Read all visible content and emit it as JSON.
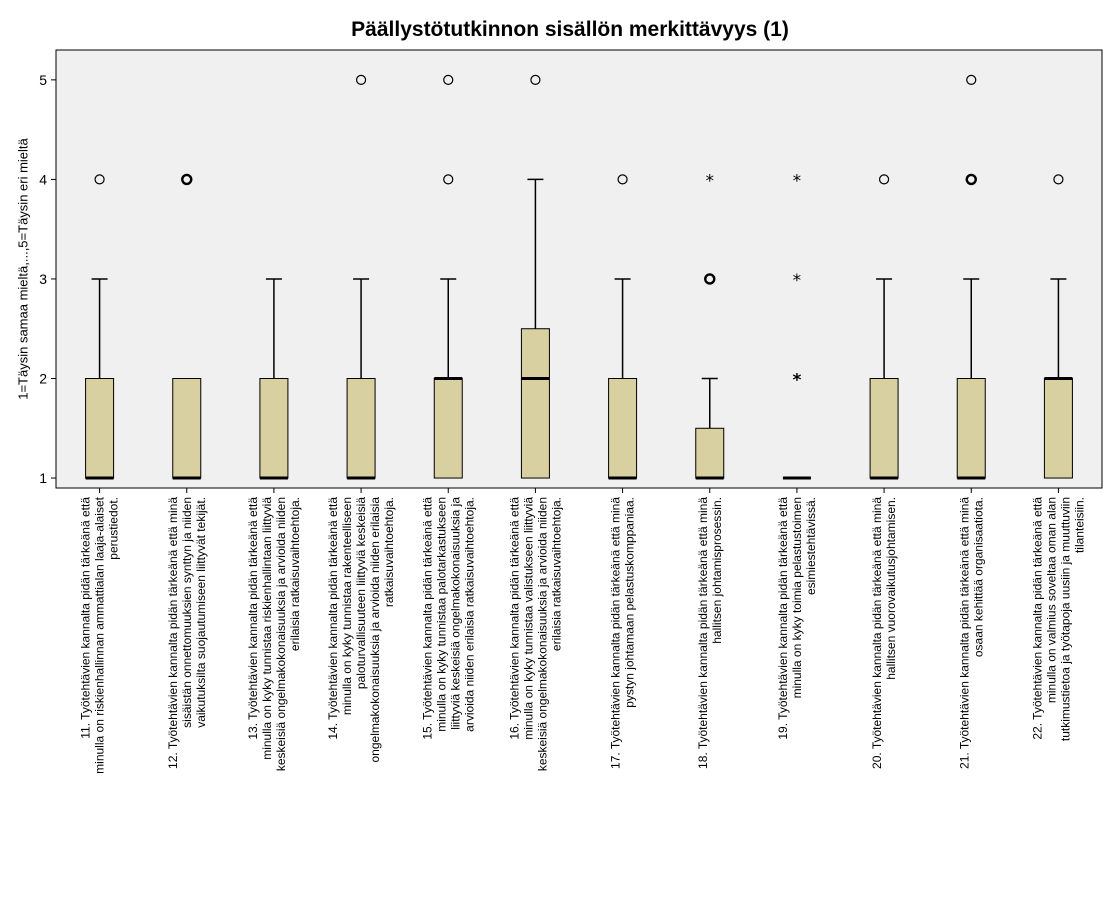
{
  "chart_data": {
    "type": "boxplot",
    "title": "Päällystötutkinnon sisällön merkittävyys (1)",
    "ylabel": "1=Täysin samaa mieltä,...,5=Täysin eri mieltä",
    "ylim": [
      0.9,
      5.3
    ],
    "yticks": [
      1,
      2,
      3,
      4,
      5
    ],
    "grid": false,
    "colors": {
      "box_fill": "#d8d0a0",
      "plot_bg": "#f0f0f0",
      "stroke": "#000000"
    },
    "categories": [
      {
        "lines": [
          "11. Työtehtävien kannalta pidän tärkeänä että",
          "minulla on riskienhallinnan ammattialan laaja-alaiset",
          "perustiedot."
        ]
      },
      {
        "lines": [
          "12. Työtehtävien kannalta pidän tärkeänä että minä",
          "sisäistän onnettomuuksien synttyn ja niiden",
          "vaikutuksilta suojautumiseen liittyvät tekijät."
        ]
      },
      {
        "lines": [
          "13. Työtehtävien kannalta pidän tärkeänä että",
          "minulla on kyky tunnistaa riskienhallintaan liittyviä",
          "keskeisiä ongelmakokonaisuuksia ja arvioida niiden",
          "erilaisia ratkaisuvaihtoehtoja."
        ]
      },
      {
        "lines": [
          "14. Työtehtävien kannalta pidän tärkeänä että",
          "minulla on kyky tunnistaa rakenteelliseen",
          "paloturvallisuuteen liittyviä keskeisiä",
          "ongelmakokonaisuuksia ja arvioida niiden erilaisia",
          "ratkaisuvaihtoehtoja."
        ]
      },
      {
        "lines": [
          "15. Työtehtävien kannalta pidän tärkeänä että",
          "minulla on kyky tunnistaa palotarkastukseen",
          "liittyviä keskeisiä ongelmakokonaisuuksia ja",
          "arvioida niiden erilaisia ratkaisuvaihtoehtoja."
        ]
      },
      {
        "lines": [
          "16. Työtehtävien kannalta pidän tärkeänä että",
          "minulla on kyky tunnistaa valistukseen liittyviä",
          "keskeisiä ongelmakokonaisuuksia ja arvioida niiden",
          "erilaisia ratkaisuvaihtoehtoja."
        ]
      },
      {
        "lines": [
          "17. Työtehtävien kannalta pidän tärkeänä että minä",
          "pystyn johtamaan pelastuskomppaniaa."
        ]
      },
      {
        "lines": [
          "18. Työtehtävien kannalta pidän tärkeänä että minä",
          "hallitsen johtamisprosessin."
        ]
      },
      {
        "lines": [
          "19. Työtehtävien kannalta pidän tärkeänä että",
          "minulla on kyky toimia pelastustoimen",
          "esimiestehtävissä."
        ]
      },
      {
        "lines": [
          "20. Työtehtävien kannalta pidän tärkeänä että minä",
          "hallitsen vuorovaikutusjohtamisen."
        ]
      },
      {
        "lines": [
          "21. Työtehtävien kannalta pidän tärkeänä että minä",
          "osaan kehittää organisaatiota."
        ]
      },
      {
        "lines": [
          "22. Työtehtävien kannalta pidän tärkeänä että",
          "minulla on valmius soveltaa oman alan",
          "tutkimustietoa ja työtapoja uusiin ja muuttuviin",
          "tilanteisiin."
        ]
      }
    ],
    "boxes": [
      {
        "q1": 1,
        "median": 1,
        "q3": 2,
        "whisker_low": 1,
        "whisker_high": 3,
        "outliers": [
          {
            "y": 4,
            "marker": "circle"
          }
        ]
      },
      {
        "q1": 1,
        "median": 1,
        "q3": 2,
        "whisker_low": 1,
        "whisker_high": 2,
        "outliers": [
          {
            "y": 4,
            "marker": "circle-bold"
          }
        ]
      },
      {
        "q1": 1,
        "median": 1,
        "q3": 2,
        "whisker_low": 1,
        "whisker_high": 3,
        "outliers": []
      },
      {
        "q1": 1,
        "median": 1,
        "q3": 2,
        "whisker_low": 1,
        "whisker_high": 3,
        "outliers": [
          {
            "y": 5,
            "marker": "circle"
          }
        ]
      },
      {
        "q1": 1,
        "median": 2,
        "q3": 2,
        "whisker_low": 1,
        "whisker_high": 3,
        "outliers": [
          {
            "y": 4,
            "marker": "circle"
          },
          {
            "y": 5,
            "marker": "circle"
          }
        ]
      },
      {
        "q1": 1,
        "median": 2,
        "q3": 2.5,
        "whisker_low": 1,
        "whisker_high": 4,
        "outliers": [
          {
            "y": 5,
            "marker": "circle"
          }
        ]
      },
      {
        "q1": 1,
        "median": 1,
        "q3": 2,
        "whisker_low": 1,
        "whisker_high": 3,
        "outliers": [
          {
            "y": 4,
            "marker": "circle"
          }
        ]
      },
      {
        "q1": 1,
        "median": 1,
        "q3": 1.5,
        "whisker_low": 1,
        "whisker_high": 2,
        "outliers": [
          {
            "y": 3,
            "marker": "circle-bold"
          },
          {
            "y": 4,
            "marker": "star"
          }
        ]
      },
      {
        "q1": 1,
        "median": 1,
        "q3": 1,
        "whisker_low": 1,
        "whisker_high": 1,
        "outliers": [
          {
            "y": 2,
            "marker": "star-bold"
          },
          {
            "y": 3,
            "marker": "star"
          },
          {
            "y": 4,
            "marker": "star"
          }
        ]
      },
      {
        "q1": 1,
        "median": 1,
        "q3": 2,
        "whisker_low": 1,
        "whisker_high": 3,
        "outliers": [
          {
            "y": 4,
            "marker": "circle"
          }
        ]
      },
      {
        "q1": 1,
        "median": 1,
        "q3": 2,
        "whisker_low": 1,
        "whisker_high": 3,
        "outliers": [
          {
            "y": 4,
            "marker": "circle-bold"
          },
          {
            "y": 5,
            "marker": "circle"
          }
        ]
      },
      {
        "q1": 1,
        "median": 2,
        "q3": 2,
        "whisker_low": 1,
        "whisker_high": 3,
        "outliers": [
          {
            "y": 4,
            "marker": "circle"
          }
        ]
      }
    ]
  }
}
